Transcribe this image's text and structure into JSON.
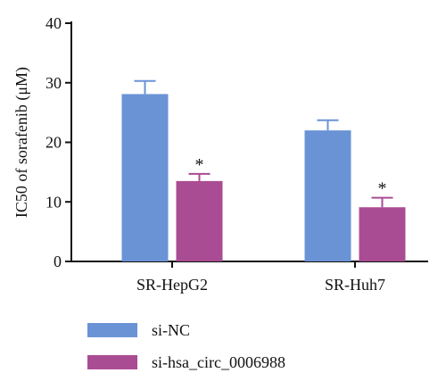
{
  "chart_data": {
    "type": "bar",
    "categories": [
      "SR-HepG2",
      "SR-Huh7"
    ],
    "series": [
      {
        "name": "si-NC",
        "color": "#6a93d6",
        "values": [
          28.1,
          22.0
        ],
        "errors": [
          2.2,
          1.7
        ],
        "marks": [
          "",
          ""
        ]
      },
      {
        "name": "si-hsa_circ_0006988",
        "color": "#aa4c93",
        "values": [
          13.5,
          9.1
        ],
        "errors": [
          1.2,
          1.6
        ],
        "marks": [
          "*",
          "*"
        ]
      }
    ],
    "ylabel": "IC50 of sorafenib (μM)",
    "ylim": [
      0,
      40
    ],
    "yticks": [
      "0",
      "10",
      "20",
      "30",
      "40"
    ],
    "grid": false,
    "legend_position": "bottom-left"
  }
}
